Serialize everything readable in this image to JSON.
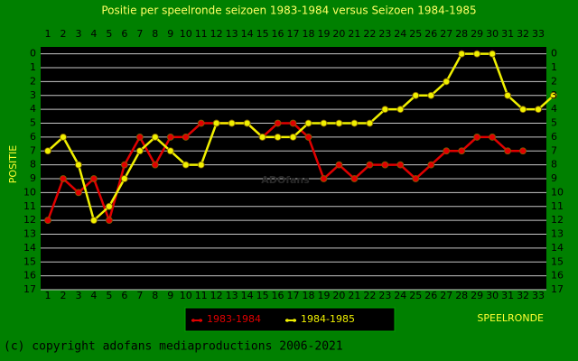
{
  "chart_data": {
    "type": "line",
    "title": "Positie per speelronde seizoen 1983-1984 versus Seizoen 1984-1985",
    "ylabel": "POSITIE",
    "xlabel": "SPEELRONDE",
    "watermark": "ADOfans",
    "categories": [
      "1",
      "2",
      "3",
      "4",
      "5",
      "6",
      "7",
      "8",
      "9",
      "10",
      "11",
      "12",
      "13",
      "14",
      "15",
      "16",
      "17",
      "18",
      "19",
      "20",
      "21",
      "22",
      "23",
      "24",
      "25",
      "26",
      "27",
      "28",
      "29",
      "30",
      "31",
      "32",
      "33",
      null
    ],
    "series": [
      {
        "name": "1983-1984",
        "color": "#e00000",
        "values": [
          12,
          9,
          10,
          9,
          12,
          8,
          6,
          8,
          6,
          6,
          5,
          5,
          5,
          5,
          6,
          5,
          5,
          6,
          9,
          8,
          9,
          8,
          8,
          8,
          9,
          8,
          7,
          7,
          6,
          6,
          7,
          7,
          null,
          null
        ]
      },
      {
        "name": "1984-1985",
        "color": "#f0f000",
        "values": [
          7,
          6,
          8,
          12,
          11,
          9,
          7,
          6,
          7,
          8,
          8,
          5,
          5,
          5,
          6,
          6,
          6,
          5,
          5,
          5,
          5,
          5,
          4,
          4,
          3,
          3,
          2,
          0,
          0,
          0,
          3,
          4,
          4,
          3
        ]
      }
    ],
    "ylim": [
      17,
      -0.5
    ],
    "yticks": [
      0,
      1,
      2,
      3,
      4,
      5,
      6,
      7,
      8,
      9,
      10,
      11,
      12,
      13,
      14,
      15,
      16,
      17
    ],
    "grid": true
  },
  "footer": "(c) copyright adofans mediaproductions 2006-2021"
}
